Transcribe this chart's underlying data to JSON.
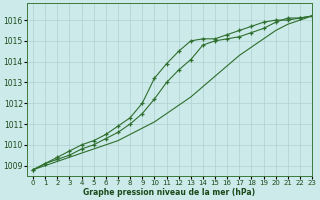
{
  "title": "Graphe pression niveau de la mer (hPa)",
  "background_color": "#cdeaea",
  "grid_color": "#afd0d0",
  "line_color": "#2d6e2d",
  "marker_color": "#2d6e2d",
  "xlim": [
    -0.5,
    23
  ],
  "ylim": [
    1008.5,
    1016.8
  ],
  "yticks": [
    1009,
    1010,
    1011,
    1012,
    1013,
    1014,
    1015,
    1016
  ],
  "xticks": [
    0,
    1,
    2,
    3,
    4,
    5,
    6,
    7,
    8,
    9,
    10,
    11,
    12,
    13,
    14,
    15,
    16,
    17,
    18,
    19,
    20,
    21,
    22,
    23
  ],
  "series1_marked": {
    "x": [
      0,
      1,
      2,
      3,
      4,
      5,
      6,
      7,
      8,
      9,
      10,
      11,
      12,
      13,
      14,
      15,
      16,
      17,
      18,
      19,
      20,
      21,
      22,
      23
    ],
    "y": [
      1008.8,
      1009.1,
      1009.3,
      1009.5,
      1009.8,
      1010.0,
      1010.3,
      1010.6,
      1011.0,
      1011.5,
      1012.2,
      1013.0,
      1013.6,
      1014.1,
      1014.8,
      1015.0,
      1015.1,
      1015.2,
      1015.4,
      1015.6,
      1015.9,
      1016.1,
      1016.1,
      1016.2
    ]
  },
  "series2_marked": {
    "x": [
      0,
      1,
      2,
      3,
      4,
      5,
      6,
      7,
      8,
      9,
      10,
      11,
      12,
      13,
      14,
      15,
      16,
      17,
      18,
      19,
      20,
      21,
      22,
      23
    ],
    "y": [
      1008.8,
      1009.1,
      1009.4,
      1009.7,
      1010.0,
      1010.2,
      1010.5,
      1010.9,
      1011.3,
      1012.0,
      1013.2,
      1013.9,
      1014.5,
      1015.0,
      1015.1,
      1015.1,
      1015.3,
      1015.5,
      1015.7,
      1015.9,
      1016.0,
      1016.0,
      1016.1,
      1016.2
    ]
  },
  "series3_plain": {
    "x": [
      0,
      1,
      2,
      3,
      4,
      5,
      6,
      7,
      8,
      9,
      10,
      11,
      12,
      13,
      14,
      15,
      16,
      17,
      18,
      19,
      20,
      21,
      22,
      23
    ],
    "y": [
      1008.8,
      1009.0,
      1009.2,
      1009.4,
      1009.6,
      1009.8,
      1010.0,
      1010.2,
      1010.5,
      1010.8,
      1011.1,
      1011.5,
      1011.9,
      1012.3,
      1012.8,
      1013.3,
      1013.8,
      1014.3,
      1014.7,
      1015.1,
      1015.5,
      1015.8,
      1016.0,
      1016.2
    ]
  }
}
